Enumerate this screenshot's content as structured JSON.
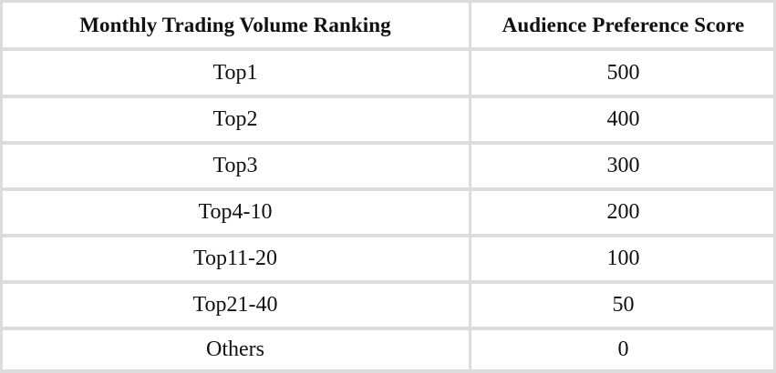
{
  "table": {
    "headers": [
      "Monthly Trading Volume Ranking",
      "Audience Preference Score"
    ],
    "rows": [
      [
        "Top1",
        "500"
      ],
      [
        "Top2",
        "400"
      ],
      [
        "Top3",
        "300"
      ],
      [
        "Top4-10",
        "200"
      ],
      [
        "Top11-20",
        "100"
      ],
      [
        "Top21-40",
        "50"
      ],
      [
        "Others",
        "0"
      ]
    ]
  }
}
